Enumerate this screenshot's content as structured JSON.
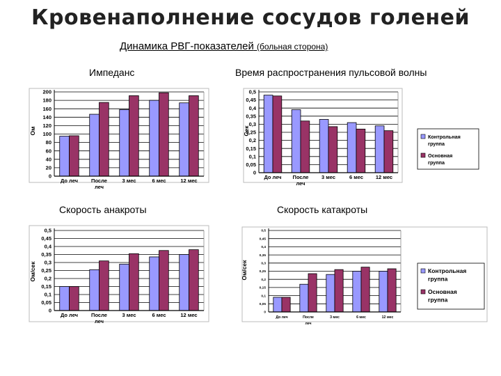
{
  "header": {
    "title": "Кровенаполнение сосудов голеней",
    "subtitle": "Динамика РВГ-показателей",
    "subtitle_note": "(больная сторона)"
  },
  "colors": {
    "control": "#9999ff",
    "main": "#993366"
  },
  "chart_data": [
    {
      "type": "bar",
      "title": "Импеданс",
      "ylabel": "Ом",
      "categories": [
        "До леч",
        "После леч",
        "3 мес",
        "6 мес",
        "12 мес"
      ],
      "ylim": [
        0,
        200
      ],
      "yticks": [
        "0",
        "20",
        "40",
        "60",
        "80",
        "100",
        "120",
        "140",
        "160",
        "180",
        "200"
      ],
      "series": [
        {
          "values": [
            95,
            147,
            158,
            180,
            174
          ]
        },
        {
          "values": [
            96,
            175,
            191,
            198,
            191
          ]
        }
      ]
    },
    {
      "type": "bar",
      "title": "Время распространения пульсовой волны",
      "ylabel": "Сек",
      "categories": [
        "До леч",
        "После леч",
        "3 мес",
        "6 мес",
        "12 мес"
      ],
      "ylim": [
        0,
        0.5
      ],
      "yticks": [
        "0",
        "0,05",
        "0,1",
        "0,15",
        "0,2",
        "0,25",
        "0,3",
        "0,35",
        "0,4",
        "0,45",
        "0,5"
      ],
      "series": [
        {
          "name": "Контрольная группа",
          "values": [
            0.48,
            0.39,
            0.33,
            0.31,
            0.29
          ]
        },
        {
          "name": "Основная группа",
          "values": [
            0.475,
            0.32,
            0.285,
            0.27,
            0.26
          ]
        }
      ],
      "legend": "right"
    },
    {
      "type": "bar",
      "title": "Скорость анакроты",
      "ylabel": "Ом/сек",
      "categories": [
        "До леч",
        "После леч",
        "3 мес",
        "6 мес",
        "12 мес"
      ],
      "ylim": [
        0,
        0.5
      ],
      "yticks": [
        "0",
        "0,05",
        "0,1",
        "0,15",
        "0,2",
        "0,25",
        "0,3",
        "0,35",
        "0,4",
        "0,45",
        "0,5"
      ],
      "series": [
        {
          "values": [
            0.15,
            0.255,
            0.29,
            0.335,
            0.35
          ]
        },
        {
          "values": [
            0.15,
            0.31,
            0.355,
            0.375,
            0.38
          ]
        }
      ]
    },
    {
      "type": "bar",
      "title": "Скорость катакроты",
      "ylabel": "Ом/сек",
      "categories": [
        "До леч",
        "После леч",
        "3 мес",
        "6 мес",
        "12 мес"
      ],
      "ylim": [
        0,
        0.5
      ],
      "yticks": [
        "0",
        "0,05",
        "0,1",
        "0,15",
        "0,2",
        "0,25",
        "0,3",
        "0,35",
        "0,4",
        "0,45",
        "0,5"
      ],
      "series": [
        {
          "name": "Контрольная группа",
          "values": [
            0.09,
            0.17,
            0.23,
            0.25,
            0.25
          ]
        },
        {
          "name": "Основная группа",
          "values": [
            0.09,
            0.235,
            0.26,
            0.275,
            0.265
          ]
        }
      ],
      "legend": "right"
    }
  ]
}
